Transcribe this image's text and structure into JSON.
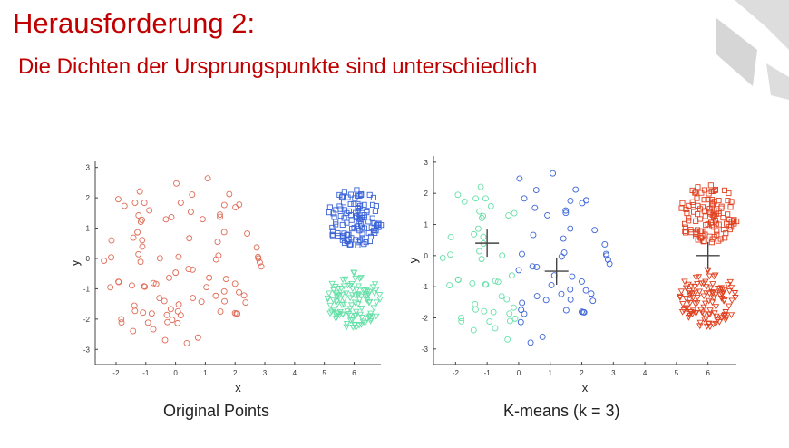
{
  "slide": {
    "title": "Herausforderung 2:",
    "subtitle": "Die Dichten der Ursprungspunkte sind unterschiedlich"
  },
  "colors": {
    "title": "#c00000",
    "red": "#e06a55",
    "blue": "#3a63d8",
    "green": "#66e0a8",
    "redDark": "#e0401f",
    "logo": "#d9d9d9"
  },
  "chart_data": [
    {
      "type": "scatter",
      "title": "Original Points",
      "xlabel": "x",
      "ylabel": "y",
      "xlim": [
        -2.7,
        6.9
      ],
      "ylim": [
        -3.5,
        3.2
      ],
      "xticks": [
        -2,
        -1,
        0,
        1,
        2,
        3,
        4,
        5,
        6
      ],
      "yticks": [
        -3,
        -2,
        -1,
        0,
        1,
        2,
        3
      ],
      "grid": false,
      "clusters": [
        {
          "cluster": "A",
          "marker": "circle",
          "color": "#e06a55",
          "center": [
            0,
            0
          ],
          "spread": "radius ~3",
          "approx_points": 100
        },
        {
          "cluster": "B",
          "marker": "square",
          "color": "#3a63d8",
          "center": [
            6,
            1.3
          ],
          "spread": "radius ~1",
          "approx_points": 100
        },
        {
          "cluster": "C",
          "marker": "triangle",
          "color": "#66e0a8",
          "center": [
            6,
            -1.3
          ],
          "spread": "radius ~1",
          "approx_points": 100
        }
      ]
    },
    {
      "type": "scatter",
      "title": "K-means (k = 3)",
      "xlabel": "x",
      "ylabel": "y",
      "xlim": [
        -2.7,
        6.9
      ],
      "ylim": [
        -3.5,
        3.2
      ],
      "xticks": [
        -2,
        -1,
        0,
        1,
        2,
        3,
        4,
        5,
        6
      ],
      "yticks": [
        -3,
        -2,
        -1,
        0,
        1,
        2,
        3
      ],
      "grid": false,
      "clusters": [
        {
          "cluster": 1,
          "color": "#66e0a8",
          "region": "left part of cluster A"
        },
        {
          "cluster": 2,
          "color": "#3a63d8",
          "region": "right part of cluster A"
        },
        {
          "cluster": 3,
          "color": "#e0401f",
          "region": "clusters B and C merged"
        }
      ],
      "centroids": [
        [
          -1.0,
          0.4
        ],
        [
          1.2,
          -0.5
        ],
        [
          6.0,
          0.0
        ]
      ]
    }
  ]
}
